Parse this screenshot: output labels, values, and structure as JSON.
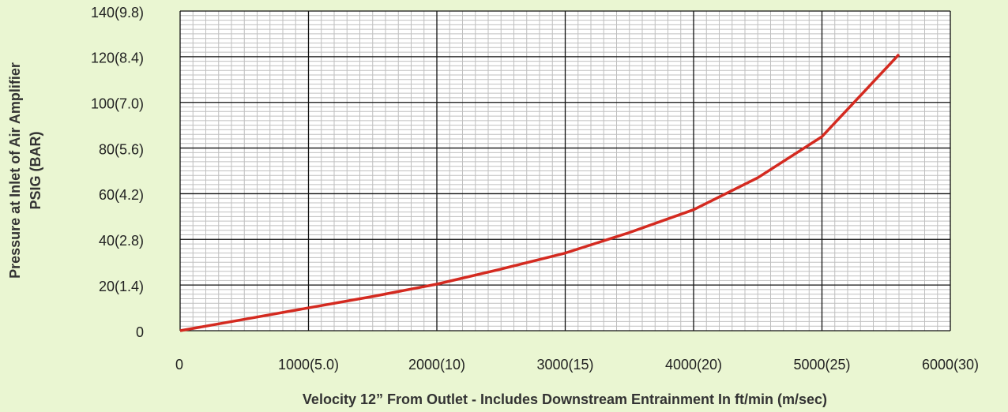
{
  "chart_data": {
    "type": "line",
    "xlabel": "Velocity 12” From Outlet - Includes Downstream Entrainment In ft/min (m/sec)",
    "ylabel": [
      "Pressure at Inlet of Air Amplifier",
      "PSIG (BAR)"
    ],
    "x": [
      0,
      500,
      1000,
      1500,
      2000,
      2500,
      3000,
      3500,
      4000,
      4500,
      5000,
      5300,
      5600
    ],
    "series": [
      {
        "name": "Pressure",
        "color": "#d42a20",
        "values": [
          0,
          5,
          10,
          15,
          20.4,
          27,
          34,
          43,
          53,
          67,
          85,
          103,
          121
        ]
      }
    ],
    "xlim": [
      0,
      6000
    ],
    "xticks": [
      0,
      {
        "value": 1000,
        "label": "1000(5.0)"
      },
      {
        "value": 2000,
        "label": "2000(10)"
      },
      {
        "value": 3000,
        "label": "3000(15)"
      },
      {
        "value": 4000,
        "label": "4000(20)"
      },
      {
        "value": 5000,
        "label": "5000(25)"
      },
      {
        "value": 6000,
        "label": "6000(30)"
      }
    ],
    "ylim": [
      0,
      140
    ],
    "yticks": [
      0,
      {
        "value": 20,
        "label": "20(1.4)"
      },
      {
        "value": 40,
        "label": "40(2.8)"
      },
      {
        "value": 60,
        "label": "60(4.2)"
      },
      {
        "value": 80,
        "label": "80(5.6)"
      },
      {
        "value": 100,
        "label": "100(7.0)"
      },
      {
        "value": 120,
        "label": "120(8.4)"
      },
      {
        "value": 140,
        "label": "140(9.8)"
      }
    ],
    "grid": true
  }
}
